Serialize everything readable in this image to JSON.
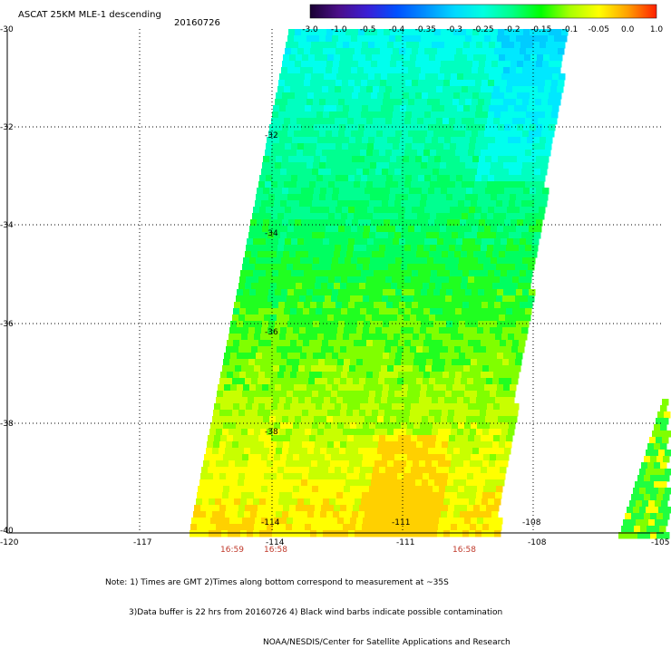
{
  "title": "ASCAT 25KM MLE-1 descending",
  "date": "20160726",
  "colorbar": {
    "labels": [
      "-3.0",
      "-1.0",
      "-0.5",
      "-0.4",
      "-0.35",
      "-0.3",
      "-0.25",
      "-0.2",
      "-0.15",
      "-0.1",
      "-0.05",
      "0.0",
      "1.0"
    ],
    "colors": [
      "#1a0033",
      "#4b0f8a",
      "#3a1fd6",
      "#0050ff",
      "#0090ff",
      "#00d8ff",
      "#00ffe0",
      "#00ff88",
      "#00ff00",
      "#a8ff00",
      "#ffff00",
      "#ffa000",
      "#ff2000"
    ]
  },
  "axes": {
    "lon_labels": [
      "-120",
      "-117",
      "-114",
      "-111",
      "-108",
      "-105"
    ],
    "lat_labels": [
      "-30",
      "-32",
      "-34",
      "-36",
      "-38",
      "-40"
    ],
    "lon_range": [
      -120,
      -105
    ],
    "lat_range": [
      -40,
      -30
    ]
  },
  "inner_labels": {
    "lon": [
      "-114",
      "-111",
      "-108"
    ],
    "lat": [
      "-32",
      "-34",
      "-36",
      "-38"
    ]
  },
  "times": [
    "16:59",
    "16:58",
    "16:58"
  ],
  "notes": [
    "Note: 1) Times are GMT 2)Times along bottom correspond to measurement at ~35S",
    "3)Data buffer is 22 hrs from 20160726 4) Black wind barbs indicate possible contamination",
    "NOAA/NESDIS/Center for Satellite Applications and Research"
  ]
}
